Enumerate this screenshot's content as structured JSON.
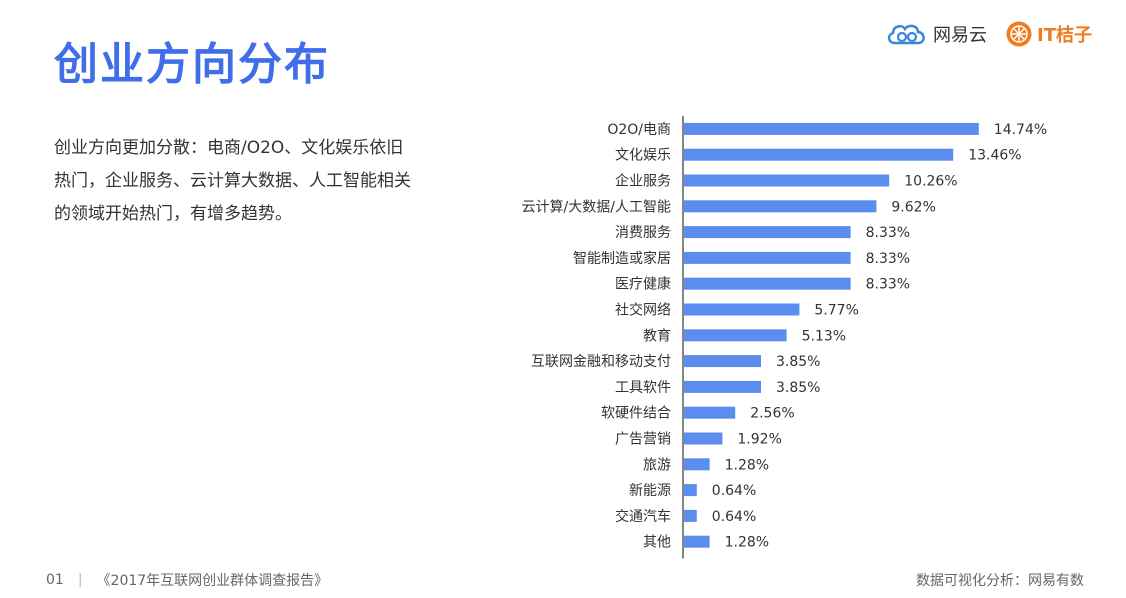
{
  "header": {
    "title": "创业方向分布",
    "logo_a": "网易云",
    "logo_b": "IT桔子"
  },
  "description": "创业方向更加分散：电商/O2O、文化娱乐依旧热门，企业服务、云计算大数据、人工智能相关的领域开始热门，有增多趋势。",
  "footer": {
    "page": "01",
    "separator": "|",
    "report": "《2017年互联网创业群体调查报告》",
    "source": "数据可视化分析：网易有数"
  },
  "colors": {
    "title": "#3f6ee8",
    "bar": "#5b8def",
    "axis": "#333333"
  },
  "chart_data": {
    "type": "bar",
    "orientation": "horizontal",
    "categories": [
      "O2O/电商",
      "文化娱乐",
      "企业服务",
      "云计算/大数据/人工智能",
      "消费服务",
      "智能制造或家居",
      "医疗健康",
      "社交网络",
      "教育",
      "互联网金融和移动支付",
      "工具软件",
      "软硬件结合",
      "广告营销",
      "旅游",
      "新能源",
      "交通汽车",
      "其他"
    ],
    "values": [
      14.74,
      13.46,
      10.26,
      9.62,
      8.33,
      8.33,
      8.33,
      5.77,
      5.13,
      3.85,
      3.85,
      2.56,
      1.92,
      1.28,
      0.64,
      0.64,
      1.28
    ],
    "labels": [
      "14.74%",
      "13.46%",
      "10.26%",
      "9.62%",
      "8.33%",
      "8.33%",
      "8.33%",
      "5.77%",
      "5.13%",
      "3.85%",
      "3.85%",
      "2.56%",
      "1.92%",
      "1.28%",
      "0.64%",
      "0.64%",
      "1.28%"
    ],
    "unit": "%",
    "xlim": [
      0,
      16
    ],
    "grid": false,
    "legend": "none"
  }
}
